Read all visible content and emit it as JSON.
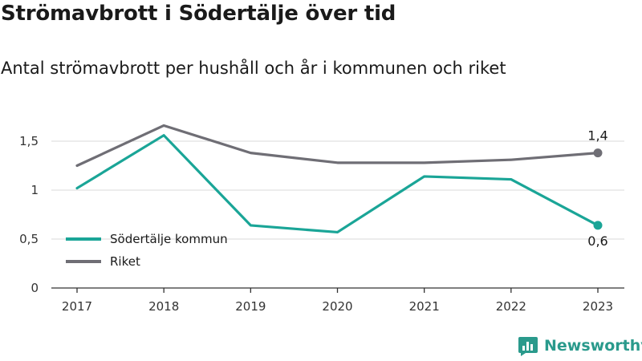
{
  "title": "Strömavbrott i Södertälje över tid",
  "subtitle": "Antal strömavbrott per hushåll och år i kommunen och riket",
  "brand": {
    "name": "Newsworthy",
    "color": "#2a9a8c"
  },
  "chart_data": {
    "type": "line",
    "title": "Strömavbrott i Södertälje över tid",
    "subtitle": "Antal strömavbrott per hushåll och år i kommunen och riket",
    "x": [
      "2017",
      "2018",
      "2019",
      "2020",
      "2021",
      "2022",
      "2023"
    ],
    "yticks": [
      "0",
      "0,5",
      "1",
      "1,5"
    ],
    "ytick_values": [
      0,
      0.5,
      1,
      1.5
    ],
    "ylim": [
      0,
      1.5
    ],
    "grid": true,
    "legend_position": "bottom-left",
    "series": [
      {
        "name": "Södertälje kommun",
        "color": "#1aa597",
        "values": [
          1.02,
          1.56,
          0.64,
          0.57,
          1.14,
          1.11,
          0.64
        ],
        "end_label": "0,6"
      },
      {
        "name": "Riket",
        "color": "#6f6e75",
        "values": [
          1.25,
          1.66,
          1.38,
          1.28,
          1.28,
          1.31,
          1.38
        ],
        "end_label": "1,4"
      }
    ]
  }
}
